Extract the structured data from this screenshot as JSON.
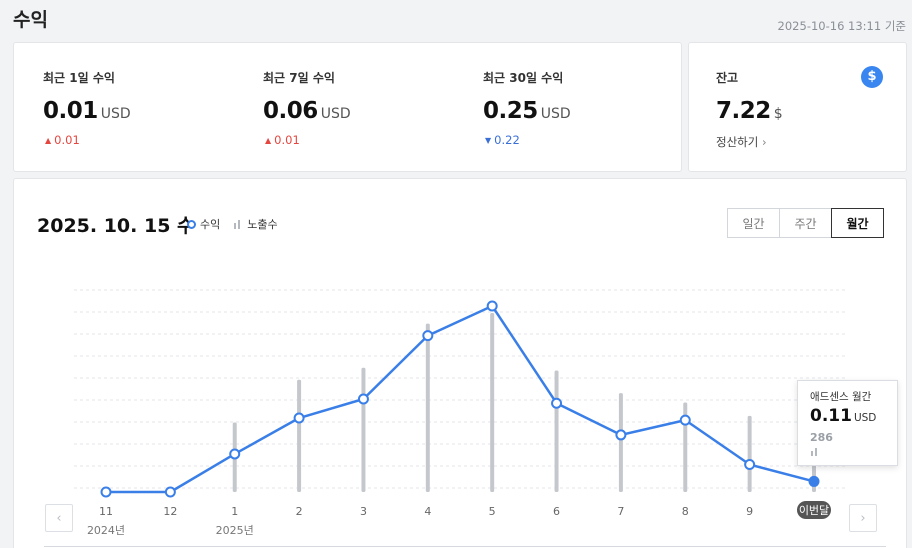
{
  "header": {
    "title": "수익",
    "timestamp": "2025-10-16 13:11 기준"
  },
  "summary": [
    {
      "label": "최근 1일 수익",
      "value": "0.01",
      "unit": "USD",
      "delta": "0.01",
      "direction": "up"
    },
    {
      "label": "최근 7일 수익",
      "value": "0.06",
      "unit": "USD",
      "delta": "0.01",
      "direction": "up"
    },
    {
      "label": "최근 30일 수익",
      "value": "0.25",
      "unit": "USD",
      "delta": "0.22",
      "direction": "down"
    }
  ],
  "balance": {
    "label": "잔고",
    "value": "7.22",
    "unit": "$",
    "link": "정산하기",
    "icon": "dollar-icon"
  },
  "chart_header": {
    "date": "2025. 10. 15 수",
    "legend_revenue": "수익",
    "legend_impressions": "노출수",
    "tabs": [
      "일간",
      "주간",
      "월간"
    ],
    "active_tab": "월간"
  },
  "tooltip": {
    "title": "애드센스 월간",
    "value": "0.11",
    "unit": "USD",
    "impressions": "286"
  },
  "colors": {
    "accent": "#3a7fe8",
    "impression_bar": "#c4c8cd",
    "up": "#e5463f",
    "down": "#3b6fd8"
  },
  "chart_data": {
    "type": "line",
    "categories": [
      "11",
      "12",
      "1",
      "2",
      "3",
      "4",
      "5",
      "6",
      "7",
      "8",
      "9",
      "이번달"
    ],
    "year_labels": {
      "0": "2024년",
      "2": "2025년"
    },
    "series": [
      {
        "name": "수익",
        "values": [
          0.0,
          0.0,
          0.18,
          0.35,
          0.44,
          0.74,
          0.88,
          0.42,
          0.27,
          0.34,
          0.13,
          0.05
        ]
      },
      {
        "name": "노출수",
        "values": [
          0,
          0,
          520,
          840,
          930,
          1260,
          1340,
          910,
          740,
          670,
          570,
          290
        ]
      }
    ],
    "grid": true
  }
}
